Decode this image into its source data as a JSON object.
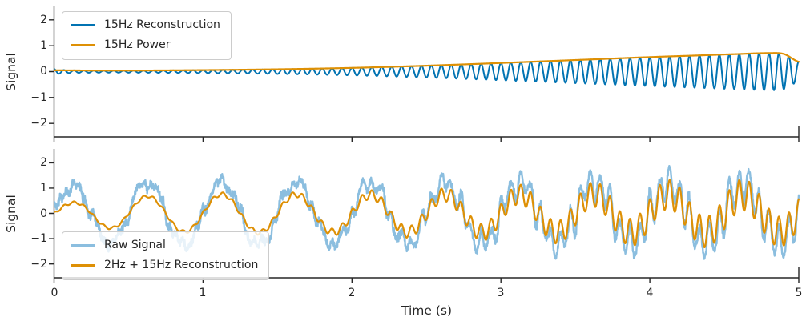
{
  "figure": {
    "background": "#ffffff",
    "spine_color": "#262626",
    "text_color": "#262626",
    "legend_border_color": "#cccccc",
    "legend_background": "rgba(255,255,255,0.8)"
  },
  "chart_data": [
    {
      "type": "line",
      "title": "",
      "xlabel": "",
      "ylabel": "Signal",
      "xlim": [
        0,
        5
      ],
      "ylim": [
        -2.5,
        2.5
      ],
      "grid": false,
      "xticks": [
        0,
        1,
        2,
        3,
        4,
        5
      ],
      "xtick_labels": [],
      "yticks": [
        2,
        1,
        0,
        -1,
        -2
      ],
      "ytick_labels": [
        "2",
        "1",
        "0",
        "−1",
        "−2"
      ],
      "legend_position": "upper left",
      "series": [
        {
          "name": "15Hz Reconstruction",
          "color": "#0173b2",
          "line_width": 2,
          "generator": {
            "type": "am",
            "carrier_hz": 15,
            "carrier_phase": "cos",
            "envelope": [
              [
                0,
                0.1
              ],
              [
                0.07,
                0.06
              ],
              [
                0.2,
                0.045
              ],
              [
                0.4,
                0.04
              ],
              [
                0.8,
                0.05
              ],
              [
                1.2,
                0.07
              ],
              [
                1.6,
                0.1
              ],
              [
                2.0,
                0.145
              ],
              [
                2.4,
                0.21
              ],
              [
                2.8,
                0.29
              ],
              [
                3.2,
                0.38
              ],
              [
                3.6,
                0.47
              ],
              [
                4.0,
                0.56
              ],
              [
                4.3,
                0.62
              ],
              [
                4.6,
                0.68
              ],
              [
                4.8,
                0.715
              ],
              [
                4.9,
                0.68
              ],
              [
                5.0,
                0.38
              ]
            ]
          }
        },
        {
          "name": "15Hz Power",
          "color": "#de9005",
          "line_width": 2.2,
          "generator": {
            "type": "env",
            "envelope": [
              [
                0,
                0.05
              ],
              [
                0.4,
                0.04
              ],
              [
                0.8,
                0.05
              ],
              [
                1.2,
                0.07
              ],
              [
                1.6,
                0.1
              ],
              [
                2.0,
                0.145
              ],
              [
                2.4,
                0.21
              ],
              [
                2.8,
                0.29
              ],
              [
                3.2,
                0.38
              ],
              [
                3.6,
                0.47
              ],
              [
                4.0,
                0.56
              ],
              [
                4.3,
                0.62
              ],
              [
                4.6,
                0.68
              ],
              [
                4.8,
                0.715
              ],
              [
                4.9,
                0.68
              ],
              [
                5.0,
                0.38
              ]
            ]
          }
        }
      ]
    },
    {
      "type": "line",
      "title": "",
      "xlabel": "Time (s)",
      "ylabel": "Signal",
      "xlim": [
        0,
        5
      ],
      "ylim": [
        -2.5,
        2.5
      ],
      "grid": false,
      "xticks": [
        0,
        1,
        2,
        3,
        4,
        5
      ],
      "xtick_labels": [
        "0",
        "1",
        "2",
        "3",
        "4",
        "5"
      ],
      "yticks": [
        2,
        1,
        0,
        -1,
        -2
      ],
      "ytick_labels": [
        "2",
        "1",
        "0",
        "−1",
        "−2"
      ],
      "legend_position": "lower left",
      "series": [
        {
          "name": "Raw Signal",
          "color": "#8bbedf",
          "line_width": 2.4,
          "generator": {
            "type": "sum",
            "soft_clip": 2.45,
            "parts": [
              {
                "type": "am",
                "carrier_hz": 2,
                "carrier_phase": "sin",
                "envelope": [
                  [
                    0,
                    1.1
                  ],
                  [
                    0.4,
                    1.3
                  ],
                  [
                    1.0,
                    1.38
                  ],
                  [
                    2.0,
                    1.32
                  ],
                  [
                    3.0,
                    1.33
                  ],
                  [
                    4.0,
                    1.35
                  ],
                  [
                    5.0,
                    1.3
                  ]
                ]
              },
              {
                "type": "am",
                "carrier_hz": 15,
                "carrier_phase": "cos",
                "scale": 1.3,
                "envelope": [
                  [
                    0,
                    0.05
                  ],
                  [
                    0.5,
                    0.05
                  ],
                  [
                    1.0,
                    0.07
                  ],
                  [
                    1.5,
                    0.1
                  ],
                  [
                    2.0,
                    0.16
                  ],
                  [
                    2.5,
                    0.25
                  ],
                  [
                    3.0,
                    0.36
                  ],
                  [
                    3.5,
                    0.47
                  ],
                  [
                    4.0,
                    0.56
                  ],
                  [
                    4.5,
                    0.62
                  ],
                  [
                    4.8,
                    0.61
                  ],
                  [
                    5.0,
                    0.56
                  ]
                ]
              },
              {
                "type": "sine",
                "freq_hz": 7.3,
                "amp": 0.18,
                "phase": 0.9
              },
              {
                "type": "sine",
                "freq_hz": 23,
                "amp": 0.12,
                "phase": 2.0
              },
              {
                "type": "noise",
                "amp": 0.12,
                "seed": 42
              }
            ]
          }
        },
        {
          "name": "2Hz + 15Hz Reconstruction",
          "color": "#de9005",
          "line_width": 2.2,
          "generator": {
            "type": "sum",
            "parts": [
              {
                "type": "am",
                "carrier_hz": 2,
                "carrier_phase": "sin",
                "envelope": [
                  [
                    0,
                    0.35
                  ],
                  [
                    0.3,
                    0.55
                  ],
                  [
                    0.7,
                    0.7
                  ],
                  [
                    1.2,
                    0.76
                  ],
                  [
                    2.0,
                    0.74
                  ],
                  [
                    3.0,
                    0.75
                  ],
                  [
                    4.0,
                    0.75
                  ],
                  [
                    5.0,
                    0.72
                  ]
                ]
              },
              {
                "type": "am",
                "carrier_hz": 15,
                "carrier_phase": "cos",
                "envelope": [
                  [
                    0,
                    0.05
                  ],
                  [
                    0.5,
                    0.05
                  ],
                  [
                    1.0,
                    0.07
                  ],
                  [
                    1.5,
                    0.1
                  ],
                  [
                    2.0,
                    0.16
                  ],
                  [
                    2.5,
                    0.25
                  ],
                  [
                    3.0,
                    0.36
                  ],
                  [
                    3.5,
                    0.47
                  ],
                  [
                    4.0,
                    0.56
                  ],
                  [
                    4.5,
                    0.62
                  ],
                  [
                    4.8,
                    0.61
                  ],
                  [
                    5.0,
                    0.56
                  ]
                ]
              }
            ]
          }
        }
      ]
    }
  ]
}
